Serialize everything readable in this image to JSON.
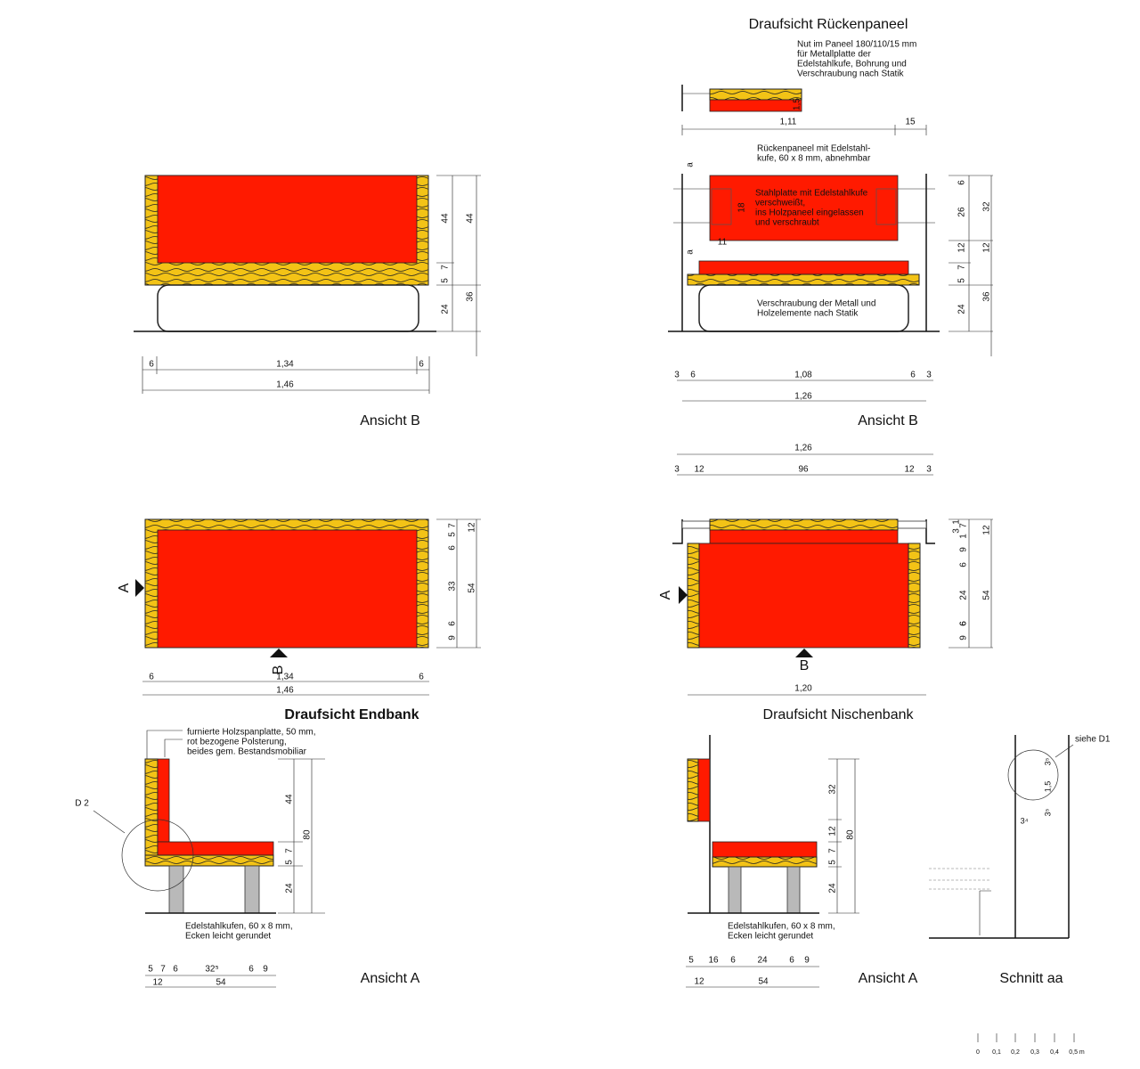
{
  "end_bench_view_b": {
    "title": "Ansicht B",
    "dims": [
      "44",
      "44",
      "5",
      "7",
      "24",
      "36",
      "6",
      "1,34",
      "6",
      "1,46"
    ]
  },
  "back_panel_top": {
    "title": "Draufsicht  Rückenpaneel",
    "note": [
      "Nut im Paneel 180/110/15 mm",
      "für Metallplatte der",
      "Edelstahlkufe, Bohrung und",
      "Verschraubung nach Statik"
    ],
    "dims": [
      "1,5",
      "1,11",
      "15"
    ]
  },
  "niche_bench_view_b": {
    "title": "Ansicht B",
    "note": [
      "Rückenpaneel mit Edelstahl-",
      "kufe, 60 x 8 mm, abnehmbar"
    ],
    "plate_note": [
      "Stahlplatte mit Edelstahlkufe",
      "verschweißt,",
      "ins Holzpaneel eingelassen",
      "und verschraubt"
    ],
    "screw_note": [
      "Verschraubung der Metall und",
      "Holzelemente nach Statik"
    ],
    "section_marks": [
      "a",
      "a"
    ],
    "dims": [
      "18",
      "11",
      "6",
      "26",
      "12",
      "5",
      "7",
      "24",
      "32",
      "12",
      "36",
      "3",
      "6",
      "1,08",
      "6",
      "3",
      "1,26"
    ]
  },
  "end_bench_top": {
    "title": "Draufsicht Endbank",
    "markers": [
      "A",
      "B"
    ],
    "dims": [
      "7",
      "5",
      "12",
      "6",
      "33",
      "6",
      "9",
      "54",
      "6",
      "1,34",
      "6",
      "1,46"
    ]
  },
  "niche_bench_top": {
    "title": "Draufsicht Nischenbank",
    "markers": [
      "A",
      "B"
    ],
    "dims": [
      "1,26",
      "3",
      "12",
      "96",
      "12",
      "3",
      "1",
      "3",
      "7",
      "1",
      "12",
      "6",
      "9",
      "6",
      "24",
      "54",
      "9",
      "6",
      "1,20"
    ]
  },
  "end_bench_view_a": {
    "title": "Ansicht A",
    "note": [
      "furnierte Holzspanplatte, 50 mm,",
      "rot bezogene Polsterung,",
      "beides gem. Bestandsmobiliar"
    ],
    "detail": "D 2",
    "skid_note": [
      "Edelstahlkufen, 60 x 8 mm,",
      "Ecken leicht gerundet"
    ],
    "dims": [
      "44",
      "5",
      "7",
      "24",
      "80",
      "5",
      "7",
      "6",
      "32⁵",
      "6",
      "9",
      "12",
      "54"
    ]
  },
  "niche_bench_view_a": {
    "title": "Ansicht A",
    "skid_note": [
      "Edelstahlkufen, 60 x 8 mm,",
      "Ecken leicht gerundet"
    ],
    "dims": [
      "32",
      "12",
      "5",
      "7",
      "24",
      "80",
      "5",
      "16",
      "6",
      "24",
      "6",
      "9",
      "12",
      "54"
    ]
  },
  "section_aa": {
    "title": "Schnitt aa",
    "detail": "siehe D1",
    "dims": [
      "3⁵",
      "1,5",
      "3⁵",
      "3⁴"
    ]
  },
  "scale_bar": {
    "labels": [
      "0",
      "0,1",
      "0,2",
      "0,3",
      "0,4",
      "0,5 m"
    ]
  }
}
